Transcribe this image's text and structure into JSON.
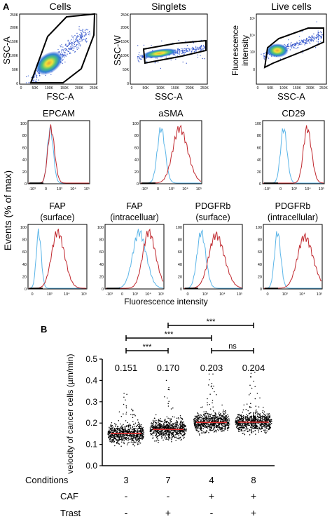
{
  "panel_a": {
    "label": "A",
    "gating": [
      {
        "title": "Cells",
        "xlabel": "FSC-A",
        "ylabel": "SSC-A",
        "xticks": [
          "0",
          "50K",
          "100K",
          "150K",
          "200K",
          "250K"
        ],
        "yticks": [
          "0",
          "50K",
          "100K",
          "150K",
          "200K",
          "250K"
        ]
      },
      {
        "title": "Singlets",
        "xlabel": "SSC-A",
        "ylabel": "SSC-W",
        "xticks": [
          "0",
          "50K",
          "100K",
          "150K",
          "200K",
          "250K"
        ],
        "yticks": [
          "0",
          "50K",
          "100K",
          "150K",
          "200K",
          "250K"
        ]
      },
      {
        "title": "Live cells",
        "xlabel": "SSC-A",
        "ylabel_line1": "Fluorescence",
        "ylabel_line2": "intensity",
        "xticks": [
          "0",
          "50K",
          "100K",
          "150K",
          "200K",
          "250K"
        ],
        "yticks": [
          "0",
          "10³",
          "10⁴",
          "10⁵"
        ]
      }
    ],
    "events_label": "Events (% of max)",
    "fluor_label": "Fluorescence intensity",
    "hist_yticks": [
      "0",
      "20",
      "40",
      "60",
      "80",
      "100"
    ],
    "row2": [
      {
        "title": "EPCAM",
        "xticks": [
          "-10³",
          "0",
          "10³",
          "10⁴",
          "10⁵"
        ]
      },
      {
        "title": "aSMA",
        "xticks": [
          "-10³",
          "0",
          "10³",
          "10⁴",
          "10⁵"
        ]
      },
      {
        "title": "CD29",
        "xticks": [
          "-10³",
          "0",
          "10³",
          "10⁴",
          "10⁵"
        ]
      }
    ],
    "row3": [
      {
        "title1": "FAP",
        "title2": "(surface)",
        "xticks": [
          "0",
          "10³",
          "10⁴",
          "10⁵"
        ]
      },
      {
        "title1": "FAP",
        "title2": "(intracelluar)",
        "xticks": [
          "-10³",
          "0",
          "10³",
          "10⁴",
          "10⁵"
        ]
      },
      {
        "title1": "PDGFRb",
        "title2": "(surface)",
        "xticks": [
          "0",
          "10³",
          "10⁴",
          "10⁵"
        ]
      },
      {
        "title1": "PDGFRb",
        "title2": "(intracellular)",
        "xticks": [
          "0",
          "10³",
          "10⁴",
          "10⁵"
        ]
      }
    ]
  },
  "panel_b": {
    "label": "B",
    "significance": [
      {
        "label": "***"
      },
      {
        "label": "***"
      },
      {
        "label": "***"
      },
      {
        "label": "ns"
      }
    ],
    "rows": {
      "conditions": "Conditions",
      "caf": "CAF",
      "trast": "Trast"
    },
    "condition_ids": [
      "3",
      "7",
      "4",
      "8"
    ],
    "caf": [
      "-",
      "-",
      "+",
      "+"
    ],
    "trast": [
      "-",
      "+",
      "-",
      "+"
    ]
  },
  "chart_data": {
    "type": "scatter",
    "ylabel": "velocity of cancer cells (µm/min)",
    "ylim": [
      0.0,
      0.5
    ],
    "yticks": [
      "0.0",
      "0.1",
      "0.2",
      "0.3",
      "0.4",
      "0.5"
    ],
    "means": [
      "0.151",
      "0.170",
      "0.203",
      "0.204"
    ],
    "mean_values": [
      0.151,
      0.17,
      0.203,
      0.204
    ],
    "spread_max": [
      0.42,
      0.4,
      0.43,
      0.44
    ],
    "colors": {
      "points": "#000000",
      "median_line": "#e03030",
      "hist_blue": "#5bb5e8",
      "hist_red": "#c0272d"
    }
  }
}
